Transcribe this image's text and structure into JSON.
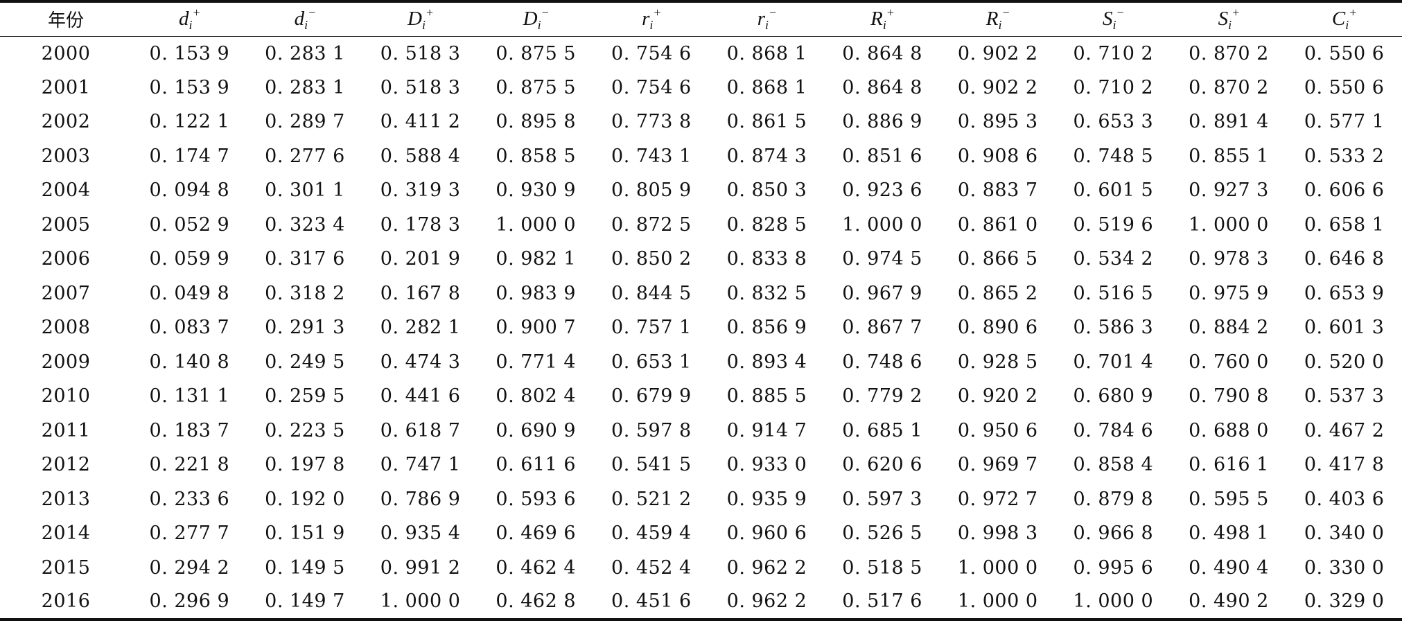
{
  "table": {
    "header": {
      "year": "年份",
      "columns": [
        {
          "base": "d",
          "sub": "i",
          "sup": "+"
        },
        {
          "base": "d",
          "sub": "i",
          "sup": "−"
        },
        {
          "base": "D",
          "sub": "i",
          "sup": "+"
        },
        {
          "base": "D",
          "sub": "i",
          "sup": "−"
        },
        {
          "base": "r",
          "sub": "i",
          "sup": "+"
        },
        {
          "base": "r",
          "sub": "i",
          "sup": "−"
        },
        {
          "base": "R",
          "sub": "i",
          "sup": "+"
        },
        {
          "base": "R",
          "sub": "i",
          "sup": "−"
        },
        {
          "base": "S",
          "sub": "i",
          "sup": "−"
        },
        {
          "base": "S",
          "sub": "i",
          "sup": "+"
        },
        {
          "base": "C",
          "sub": "i",
          "sup": "+"
        }
      ]
    },
    "rows": [
      [
        "2000",
        "0. 153 9",
        "0. 283 1",
        "0. 518 3",
        "0. 875 5",
        "0. 754 6",
        "0. 868 1",
        "0. 864 8",
        "0. 902 2",
        "0. 710 2",
        "0. 870 2",
        "0. 550 6"
      ],
      [
        "2001",
        "0. 153 9",
        "0. 283 1",
        "0. 518 3",
        "0. 875 5",
        "0. 754 6",
        "0. 868 1",
        "0. 864 8",
        "0. 902 2",
        "0. 710 2",
        "0. 870 2",
        "0. 550 6"
      ],
      [
        "2002",
        "0. 122 1",
        "0. 289 7",
        "0. 411 2",
        "0. 895 8",
        "0. 773 8",
        "0. 861 5",
        "0. 886 9",
        "0. 895 3",
        "0. 653 3",
        "0. 891 4",
        "0. 577 1"
      ],
      [
        "2003",
        "0. 174 7",
        "0. 277 6",
        "0. 588 4",
        "0. 858 5",
        "0. 743 1",
        "0. 874 3",
        "0. 851 6",
        "0. 908 6",
        "0. 748 5",
        "0. 855 1",
        "0. 533 2"
      ],
      [
        "2004",
        "0. 094 8",
        "0. 301 1",
        "0. 319 3",
        "0. 930 9",
        "0. 805 9",
        "0. 850 3",
        "0. 923 6",
        "0. 883 7",
        "0. 601 5",
        "0. 927 3",
        "0. 606 6"
      ],
      [
        "2005",
        "0. 052 9",
        "0. 323 4",
        "0. 178 3",
        "1. 000 0",
        "0. 872 5",
        "0. 828 5",
        "1. 000 0",
        "0. 861 0",
        "0. 519 6",
        "1. 000 0",
        "0. 658 1"
      ],
      [
        "2006",
        "0. 059 9",
        "0. 317 6",
        "0. 201 9",
        "0. 982 1",
        "0. 850 2",
        "0. 833 8",
        "0. 974 5",
        "0. 866 5",
        "0. 534 2",
        "0. 978 3",
        "0. 646 8"
      ],
      [
        "2007",
        "0. 049 8",
        "0. 318 2",
        "0. 167 8",
        "0. 983 9",
        "0. 844 5",
        "0. 832 5",
        "0. 967 9",
        "0. 865 2",
        "0. 516 5",
        "0. 975 9",
        "0. 653 9"
      ],
      [
        "2008",
        "0. 083 7",
        "0. 291 3",
        "0. 282 1",
        "0. 900 7",
        "0. 757 1",
        "0. 856 9",
        "0. 867 7",
        "0. 890 6",
        "0. 586 3",
        "0. 884 2",
        "0. 601 3"
      ],
      [
        "2009",
        "0. 140 8",
        "0. 249 5",
        "0. 474 3",
        "0. 771 4",
        "0. 653 1",
        "0. 893 4",
        "0. 748 6",
        "0. 928 5",
        "0. 701 4",
        "0. 760 0",
        "0. 520 0"
      ],
      [
        "2010",
        "0. 131 1",
        "0. 259 5",
        "0. 441 6",
        "0. 802 4",
        "0. 679 9",
        "0. 885 5",
        "0. 779 2",
        "0. 920 2",
        "0. 680 9",
        "0. 790 8",
        "0. 537 3"
      ],
      [
        "2011",
        "0. 183 7",
        "0. 223 5",
        "0. 618 7",
        "0. 690 9",
        "0. 597 8",
        "0. 914 7",
        "0. 685 1",
        "0. 950 6",
        "0. 784 6",
        "0. 688 0",
        "0. 467 2"
      ],
      [
        "2012",
        "0. 221 8",
        "0. 197 8",
        "0. 747 1",
        "0. 611 6",
        "0. 541 5",
        "0. 933 0",
        "0. 620 6",
        "0. 969 7",
        "0. 858 4",
        "0. 616 1",
        "0. 417 8"
      ],
      [
        "2013",
        "0. 233 6",
        "0. 192 0",
        "0. 786 9",
        "0. 593 6",
        "0. 521 2",
        "0. 935 9",
        "0. 597 3",
        "0. 972 7",
        "0. 879 8",
        "0. 595 5",
        "0. 403 6"
      ],
      [
        "2014",
        "0. 277 7",
        "0. 151 9",
        "0. 935 4",
        "0. 469 6",
        "0. 459 4",
        "0. 960 6",
        "0. 526 5",
        "0. 998 3",
        "0. 966 8",
        "0. 498 1",
        "0. 340 0"
      ],
      [
        "2015",
        "0. 294 2",
        "0. 149 5",
        "0. 991 2",
        "0. 462 4",
        "0. 452 4",
        "0. 962 2",
        "0. 518 5",
        "1. 000 0",
        "0. 995 6",
        "0. 490 4",
        "0. 330 0"
      ],
      [
        "2016",
        "0. 296 9",
        "0. 149 7",
        "1. 000 0",
        "0. 462 8",
        "0. 451 6",
        "0. 962 2",
        "0. 517 6",
        "1. 000 0",
        "1. 000 0",
        "0. 490 2",
        "0. 329 0"
      ]
    ]
  }
}
